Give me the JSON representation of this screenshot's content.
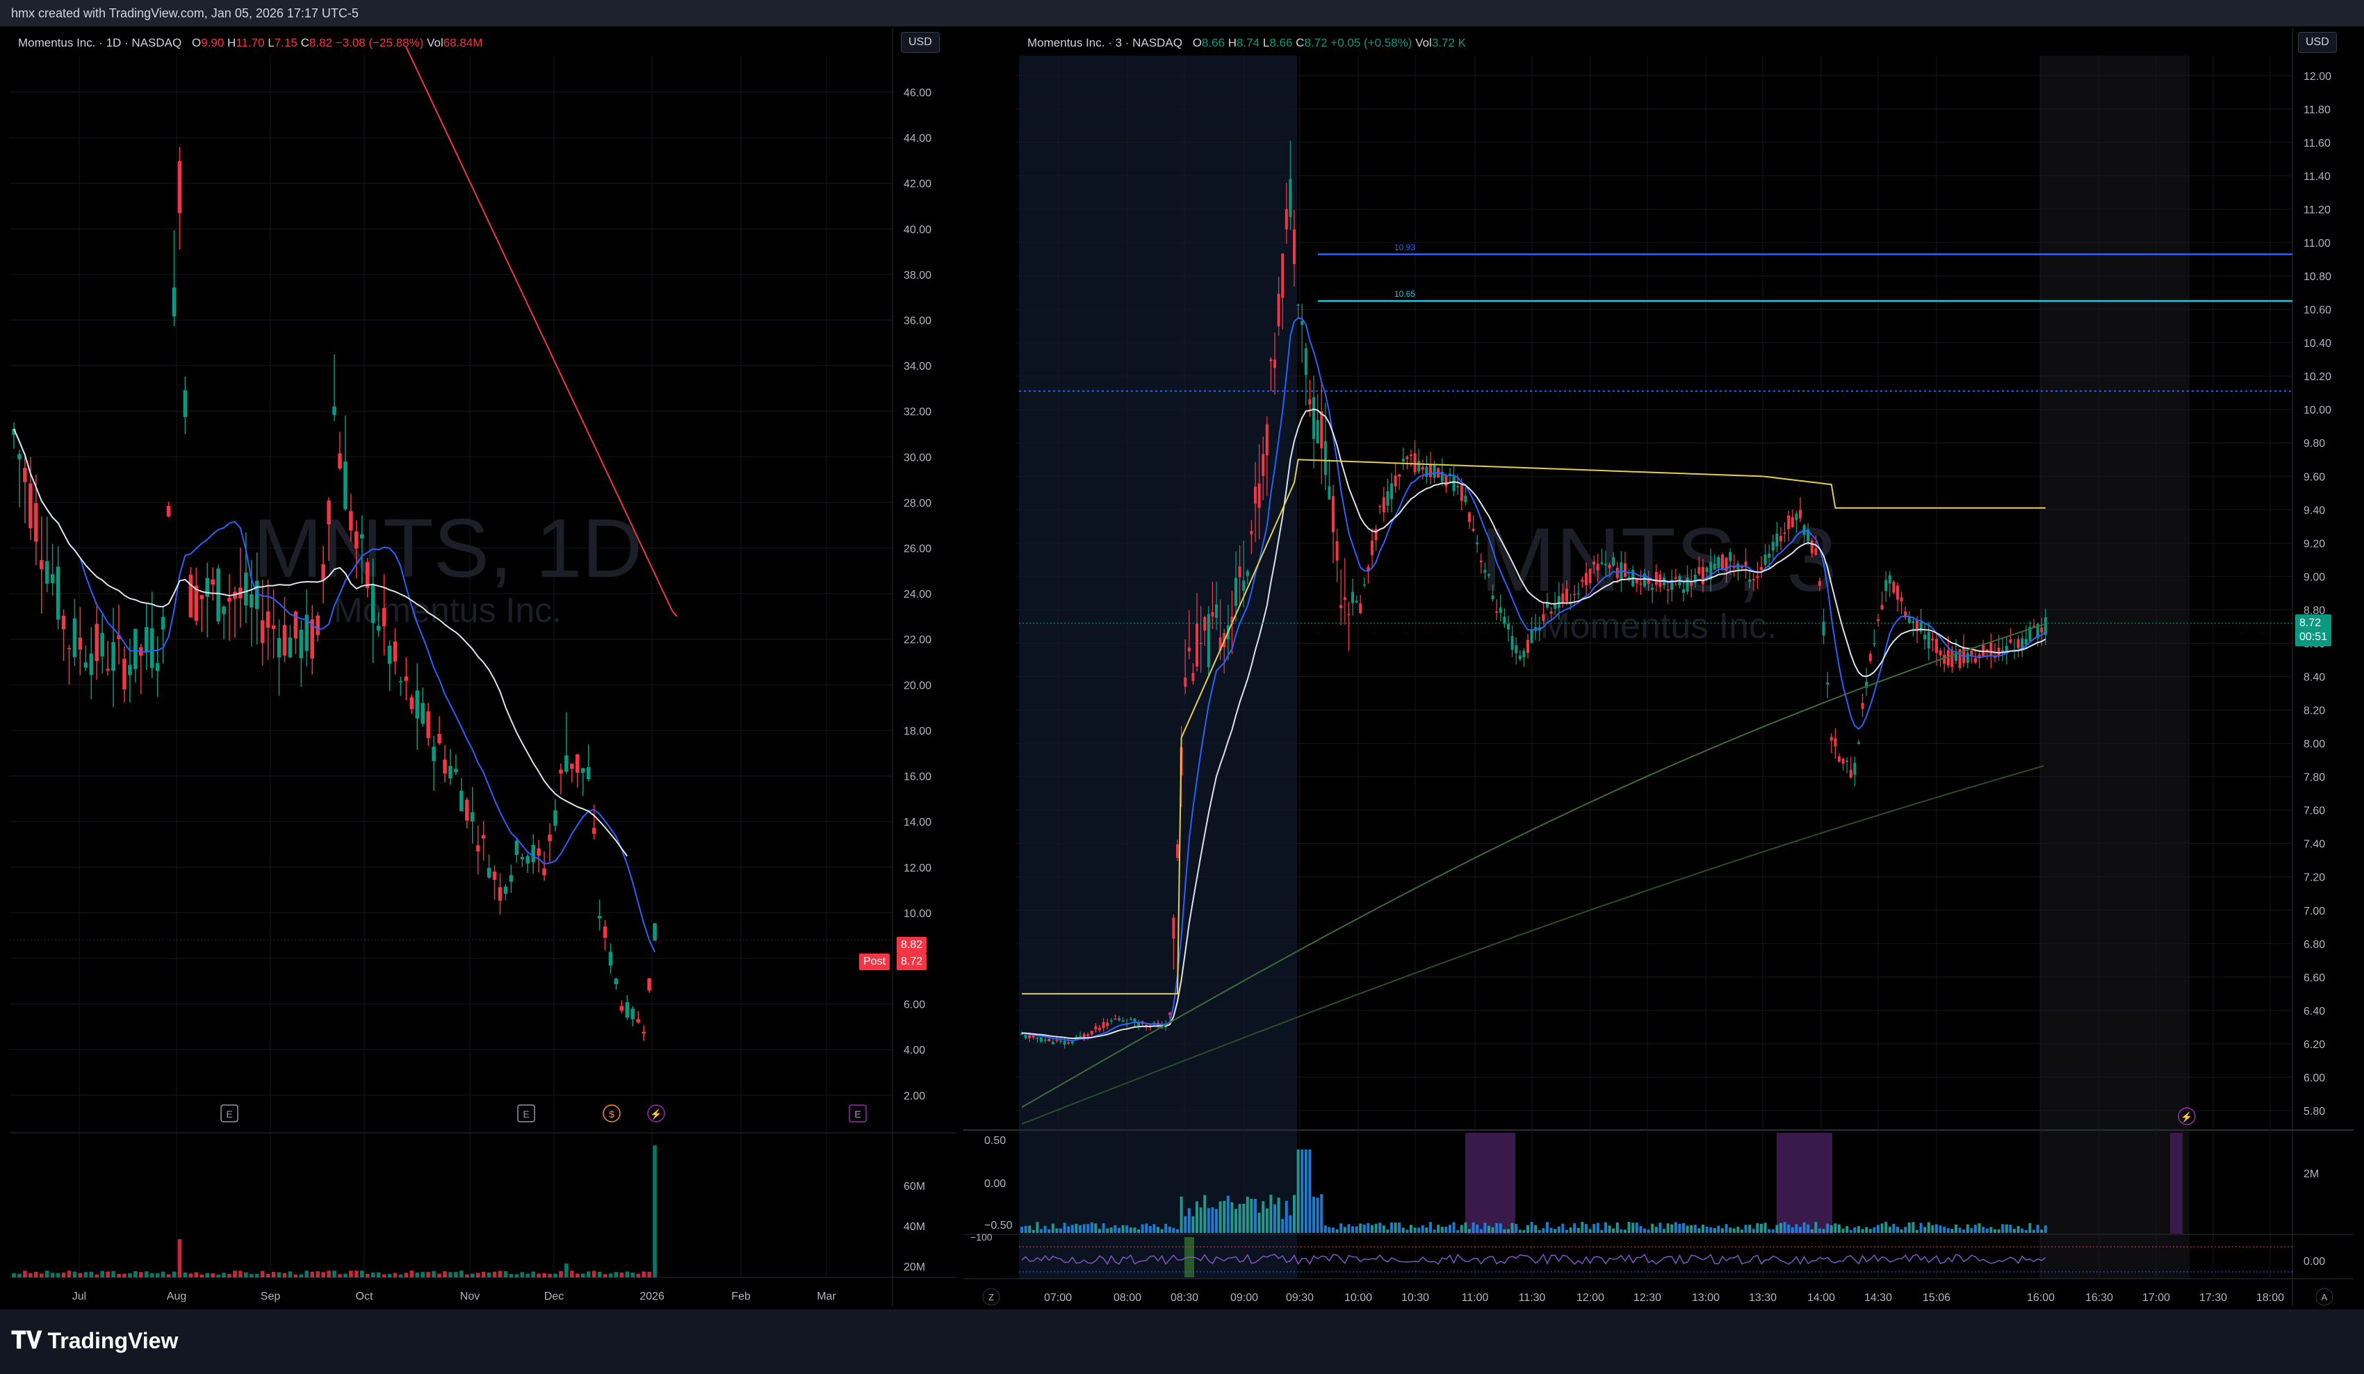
{
  "header": {
    "text": "hmx created with TradingView.com, Jan 05, 2026 17:17 UTC-5"
  },
  "brand": {
    "name": "TradingView",
    "logo_icon": "tradingview-logo-icon"
  },
  "colors": {
    "up": "#089981",
    "down": "#f23645",
    "blue": "#2962ff",
    "white": "#e0e3eb",
    "yellow": "#e5d04a",
    "red": "#f23645",
    "green_ma": "#3d6b3a",
    "cyan": "#26c6da"
  },
  "left": {
    "currency": "USD",
    "legend": {
      "name": "Momentus Inc. · 1D · NASDAQ",
      "o_label": "O",
      "o": "9.90",
      "h_label": "H",
      "h": "11.70",
      "l_label": "L",
      "l": "7.15",
      "c_label": "C",
      "c": "8.82",
      "chg": "−3.08 (−25.88%)",
      "vol_label": "Vol",
      "vol": "68.84M"
    },
    "watermark": {
      "symbol": "MNTS, 1D",
      "company": "Momentus Inc."
    },
    "price_badge": "8.82",
    "post_badge_label": "Post",
    "post_badge": "8.72",
    "events": [
      "E",
      "E",
      "$",
      "⚡",
      "E"
    ],
    "volume_axis": [
      "60M",
      "40M",
      "20M"
    ]
  },
  "right": {
    "currency": "USD",
    "legend": {
      "name": "Momentus Inc. · 3 · NASDAQ",
      "o_label": "O",
      "o": "8.66",
      "h_label": "H",
      "h": "8.74",
      "l_label": "L",
      "l": "8.66",
      "c_label": "C",
      "c": "8.72",
      "chg": "+0.05 (+0.58%)",
      "vol_label": "Vol",
      "vol": "3.72 K"
    },
    "watermark": {
      "symbol": "MNTS, 3",
      "company": "Momentus Inc."
    },
    "price_badge": "8.72",
    "countdown": "00:51",
    "line_labels": [
      "10.93",
      "10.65"
    ],
    "indicator1_axis": [
      "0.50",
      "0.00",
      "−0.50"
    ],
    "indicator2_axis": [
      "−100"
    ],
    "right_vol_axis": [
      "2M",
      "0.00"
    ],
    "z_label": "Z",
    "a_label": "A"
  },
  "chart_data": [
    {
      "type": "candlestick",
      "title": "MNTS, 1D",
      "x_ticks": [
        "Jul",
        "Aug",
        "Sep",
        "Oct",
        "Nov",
        "Dec",
        "2026",
        "Feb",
        "Mar"
      ],
      "y_ticks": [
        "46.00",
        "44.00",
        "42.00",
        "40.00",
        "38.00",
        "36.00",
        "34.00",
        "32.00",
        "30.00",
        "28.00",
        "26.00",
        "24.00",
        "22.00",
        "20.00",
        "18.00",
        "16.00",
        "14.00",
        "12.00",
        "10.00",
        "8.00",
        "6.00",
        "4.00",
        "2.00"
      ],
      "ylim": [
        0.5,
        47.6
      ],
      "last_close": 8.82
    },
    {
      "type": "candlestick",
      "title": "MNTS, 3",
      "x_ticks": [
        "07:00",
        "08:00",
        "08:30",
        "09:00",
        "09:30",
        "10:00",
        "10:30",
        "11:00",
        "11:30",
        "12:00",
        "12:30",
        "13:00",
        "13:30",
        "14:00",
        "14:30",
        "15:06",
        "16:00",
        "16:30",
        "17:00",
        "17:30",
        "18:00"
      ],
      "y_ticks": [
        "12.00",
        "11.80",
        "11.60",
        "11.40",
        "11.20",
        "11.00",
        "10.80",
        "10.60",
        "10.40",
        "10.20",
        "10.00",
        "9.80",
        "9.60",
        "9.40",
        "9.20",
        "9.00",
        "8.80",
        "8.60",
        "8.40",
        "8.20",
        "8.00",
        "7.80",
        "7.60",
        "7.40",
        "7.20",
        "7.00",
        "6.80",
        "6.60",
        "6.40",
        "6.20",
        "6.00",
        "5.80"
      ],
      "ylim": [
        5.7,
        12.12
      ],
      "horizontal_lines": [
        10.93,
        10.65,
        10.11
      ],
      "last_close": 8.72
    }
  ]
}
